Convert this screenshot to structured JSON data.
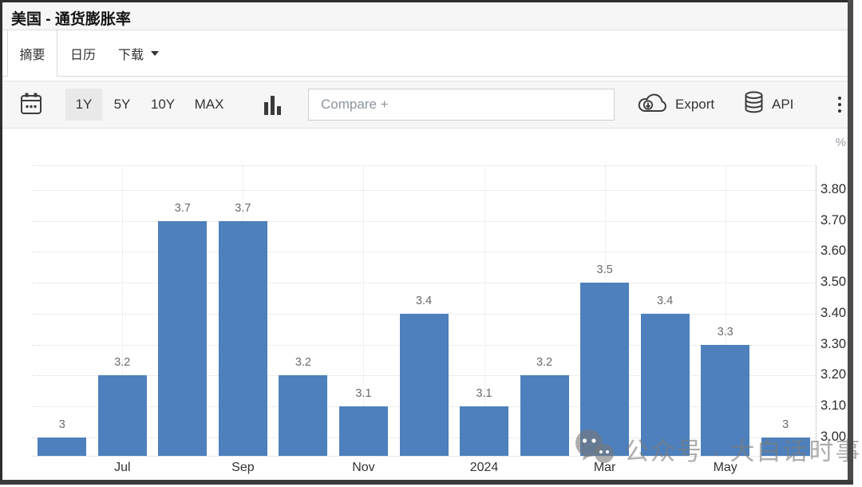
{
  "window": {
    "title": "美国 - 通货膨胀率"
  },
  "tabs": {
    "summary": "摘要",
    "calendar": "日历",
    "download": "下载"
  },
  "toolbar": {
    "ranges": {
      "r1y": "1Y",
      "r5y": "5Y",
      "r10y": "10Y",
      "rmax": "MAX"
    },
    "compare_placeholder": "Compare +",
    "export_label": "Export",
    "api_label": "API"
  },
  "watermark": {
    "text": "公众号 · 大白话时事"
  },
  "chart_data": {
    "type": "bar",
    "title": "美国 - 通货膨胀率",
    "unit": "%",
    "categories": [
      "",
      "Jul",
      "",
      "Sep",
      "",
      "Nov",
      "",
      "2024",
      "",
      "Mar",
      "",
      "May",
      ""
    ],
    "values": [
      3,
      3.2,
      3.7,
      3.7,
      3.2,
      3.1,
      3.4,
      3.1,
      3.2,
      3.5,
      3.4,
      3.3,
      3
    ],
    "bar_labels": [
      "3",
      "3.2",
      "3.7",
      "3.7",
      "3.2",
      "3.1",
      "3.4",
      "3.1",
      "3.2",
      "3.5",
      "3.4",
      "3.3",
      "3"
    ],
    "ylim": [
      2.94,
      3.88
    ],
    "yticks": [
      3.0,
      3.1,
      3.2,
      3.3,
      3.4,
      3.5,
      3.6,
      3.7,
      3.8
    ],
    "ytick_labels": [
      "3.00",
      "3.10",
      "3.20",
      "3.30",
      "3.40",
      "3.50",
      "3.60",
      "3.70",
      "3.80"
    ],
    "bar_color": "#4d80bc",
    "grid": true,
    "legend": false,
    "y_axis_position": "right",
    "value_labels": true
  }
}
